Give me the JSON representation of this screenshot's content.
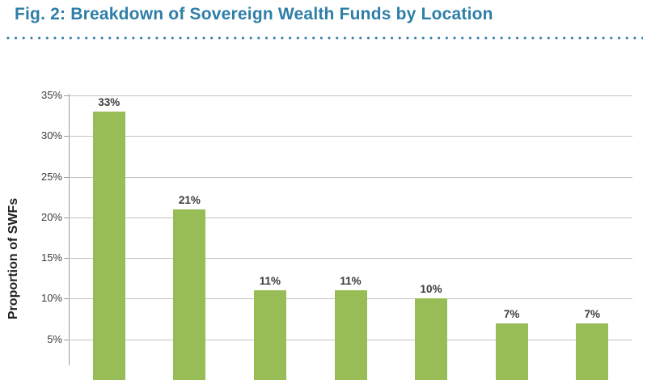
{
  "figure": {
    "title": "Fig. 2: Breakdown of Sovereign Wealth Funds by Location"
  },
  "chart_data": {
    "type": "bar",
    "title": "Fig. 2: Breakdown of Sovereign Wealth Funds by Location",
    "xlabel": "",
    "ylabel": "Proportion of SWFs",
    "values": [
      33,
      21,
      11,
      11,
      10,
      7,
      7
    ],
    "bar_labels": [
      "33%",
      "21%",
      "11%",
      "11%",
      "10%",
      "7%",
      "7%"
    ],
    "yticks": [
      {
        "value": 35,
        "label": "35%"
      },
      {
        "value": 30,
        "label": "30%"
      },
      {
        "value": 25,
        "label": "25%"
      },
      {
        "value": 20,
        "label": "20%"
      },
      {
        "value": 15,
        "label": "15%"
      },
      {
        "value": 10,
        "label": "10%"
      },
      {
        "value": 5,
        "label": "5%"
      }
    ],
    "ylim": [
      0,
      35
    ],
    "grid": true,
    "legend": false,
    "x_axis_labels_visible": false,
    "colors": {
      "bar": "#99bd56",
      "title": "#2e7ea8",
      "divider_dots": "#2e7ea8",
      "gridline": "#c3c3c3",
      "axis": "#9b9b9b",
      "tick_text": "#3b3b3b",
      "ylabel_text": "#1f1f1f"
    }
  }
}
